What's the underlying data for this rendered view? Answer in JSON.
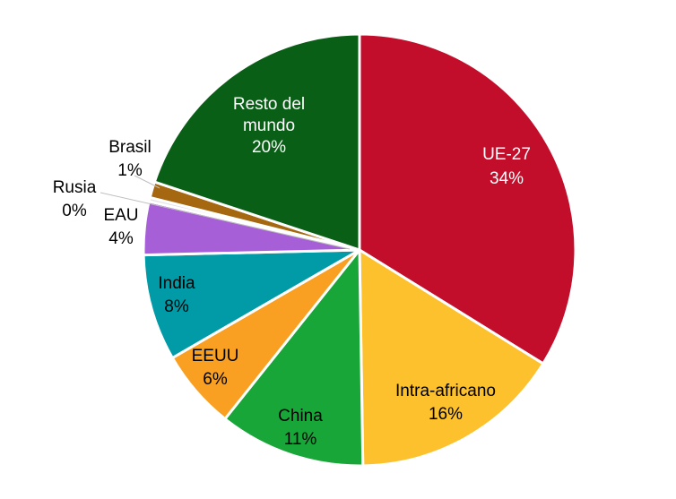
{
  "chart_data": {
    "type": "pie",
    "title": "",
    "start_angle_deg": 0,
    "direction": "clockwise",
    "slices": [
      {
        "name": "UE-27",
        "value": 34,
        "label": "34%",
        "color": "#C20E2B"
      },
      {
        "name": "Intra-africano",
        "value": 16,
        "label": "16%",
        "color": "#FDC12D"
      },
      {
        "name": "China",
        "value": 11,
        "label": "11%",
        "color": "#19A639"
      },
      {
        "name": "EEUU",
        "value": 6,
        "label": "6%",
        "color": "#F9A022"
      },
      {
        "name": "India",
        "value": 8,
        "label": "8%",
        "color": "#009BA7"
      },
      {
        "name": "EAU",
        "value": 4,
        "label": "4%",
        "color": "#A65FD6"
      },
      {
        "name": "Rusia",
        "value": 0.3,
        "label": "0%",
        "color": "#E3E3E3"
      },
      {
        "name": "Brasil",
        "value": 1.2,
        "label": "1%",
        "color": "#A56810"
      },
      {
        "name": "Resto del mundo",
        "value": 20,
        "label": "20%",
        "color": "#0A5F16"
      }
    ]
  },
  "labels": {
    "ue27": {
      "name": "UE-27",
      "pct": "34%"
    },
    "intra": {
      "name": "Intra-africano",
      "pct": "16%"
    },
    "china": {
      "name": "China",
      "pct": "11%"
    },
    "eeuu": {
      "name": "EEUU",
      "pct": "6%"
    },
    "india": {
      "name": "India",
      "pct": "8%"
    },
    "eau": {
      "name": "EAU",
      "pct": "4%"
    },
    "rusia": {
      "name": "Rusia",
      "pct": "0%"
    },
    "brasil": {
      "name": "Brasil",
      "pct": "1%"
    },
    "resto": {
      "line1": "Resto del",
      "line2": "mundo",
      "pct": "20%"
    }
  }
}
